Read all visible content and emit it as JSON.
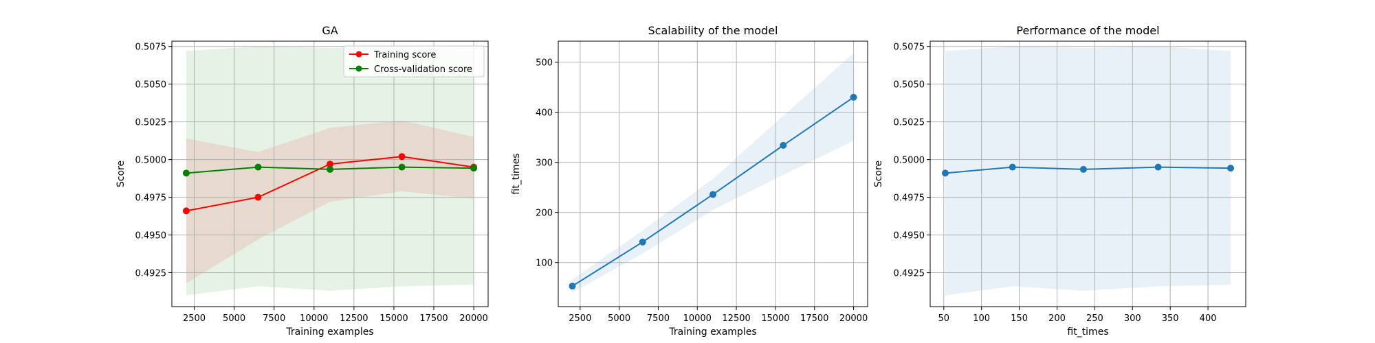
{
  "chart_data": [
    {
      "type": "line",
      "title": "GA",
      "xlabel": "Training examples",
      "ylabel": "Score",
      "xlim": [
        1100,
        20900
      ],
      "ylim": [
        0.49025,
        0.50785
      ],
      "xticks": [
        2500,
        5000,
        7500,
        10000,
        12500,
        15000,
        17500,
        20000
      ],
      "xtick_labels": [
        "2500",
        "5000",
        "7500",
        "10000",
        "12500",
        "15000",
        "17500",
        "20000"
      ],
      "yticks": [
        0.4925,
        0.495,
        0.4975,
        0.5,
        0.5025,
        0.505,
        0.5075
      ],
      "ytick_labels": [
        "0.4925",
        "0.4950",
        "0.4975",
        "0.5000",
        "0.5025",
        "0.5050",
        "0.5075"
      ],
      "grid": true,
      "legend": "upper right",
      "x": [
        2000,
        6500,
        11000,
        15500,
        20000
      ],
      "series": [
        {
          "name": "Training score",
          "color": "#ff0000",
          "values": [
            0.4966,
            0.4975,
            0.4997,
            0.5002,
            0.4995
          ],
          "band_lower": [
            0.4918,
            0.4947,
            0.4972,
            0.4979,
            0.4974
          ],
          "band_upper": [
            0.5014,
            0.5005,
            0.5021,
            0.5026,
            0.5015
          ]
        },
        {
          "name": "Cross-validation score",
          "color": "#008000",
          "values": [
            0.4991,
            0.4995,
            0.49935,
            0.4995,
            0.49943
          ],
          "band_lower": [
            0.491,
            0.4916,
            0.4913,
            0.4916,
            0.4917
          ],
          "band_upper": [
            0.5072,
            0.5075,
            0.5074,
            0.5075,
            0.5072
          ]
        }
      ]
    },
    {
      "type": "line",
      "title": "Scalability of the model",
      "xlabel": "Training examples",
      "ylabel": "fit_times",
      "xlim": [
        1100,
        20900
      ],
      "ylim": [
        12,
        542
      ],
      "xticks": [
        2500,
        5000,
        7500,
        10000,
        12500,
        15000,
        17500,
        20000
      ],
      "xtick_labels": [
        "2500",
        "5000",
        "7500",
        "10000",
        "12500",
        "15000",
        "17500",
        "20000"
      ],
      "yticks": [
        100,
        200,
        300,
        400,
        500
      ],
      "ytick_labels": [
        "100",
        "200",
        "300",
        "400",
        "500"
      ],
      "grid": true,
      "x": [
        2000,
        6500,
        11000,
        15500,
        20000
      ],
      "series": [
        {
          "color": "#1f77b4",
          "values": [
            53,
            141,
            236,
            334,
            430
          ],
          "band_lower": [
            40,
            118,
            205,
            275,
            343
          ],
          "band_upper": [
            66,
            164,
            267,
            393,
            518
          ]
        }
      ]
    },
    {
      "type": "line",
      "title": "Performance of the model",
      "xlabel": "fit_times",
      "ylabel": "Score",
      "xlim": [
        32,
        450
      ],
      "ylim": [
        0.49025,
        0.50785
      ],
      "xticks": [
        50,
        100,
        150,
        200,
        250,
        300,
        350,
        400
      ],
      "xtick_labels": [
        "50",
        "100",
        "150",
        "200",
        "250",
        "300",
        "350",
        "400"
      ],
      "yticks": [
        0.4925,
        0.495,
        0.4975,
        0.5,
        0.5025,
        0.505,
        0.5075
      ],
      "ytick_labels": [
        "0.4925",
        "0.4950",
        "0.4975",
        "0.5000",
        "0.5025",
        "0.5050",
        "0.5075"
      ],
      "grid": true,
      "x": [
        52,
        141,
        235,
        334,
        430
      ],
      "series": [
        {
          "color": "#1f77b4",
          "values": [
            0.4991,
            0.4995,
            0.49935,
            0.4995,
            0.49943
          ],
          "band_lower": [
            0.491,
            0.4916,
            0.4913,
            0.4916,
            0.4917
          ],
          "band_upper": [
            0.5072,
            0.5075,
            0.5074,
            0.5075,
            0.5072
          ]
        }
      ]
    }
  ]
}
